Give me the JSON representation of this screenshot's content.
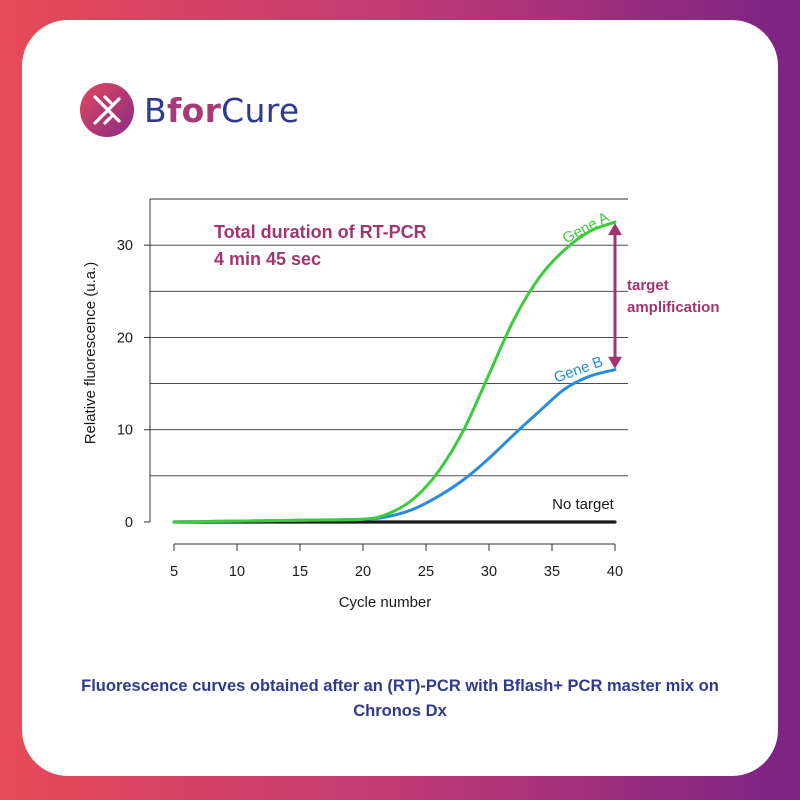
{
  "brand": {
    "part1": "B",
    "part2": "for",
    "part3": "Cure"
  },
  "caption": "Fluorescence curves obtained after an (RT)-PCR with Bflash+ PCR master mix on Chronos Dx",
  "colors": {
    "geneA": "#3ccb3c",
    "geneB": "#2b8be0",
    "noTarget": "#1a1a1a",
    "accent": "#a3356e",
    "caption": "#2f3a8f"
  },
  "chart_data": {
    "type": "line",
    "xlabel": "Cycle number",
    "ylabel": "Relative fluorescence (u.a.)",
    "xlim": [
      5,
      40
    ],
    "ylim": [
      0,
      35
    ],
    "xticks": [
      "5",
      "10",
      "15",
      "20",
      "25",
      "30",
      "35",
      "40"
    ],
    "yticks": [
      "0",
      "10",
      "20",
      "30"
    ],
    "grid": true,
    "x": [
      5,
      10,
      15,
      20,
      22,
      24,
      26,
      28,
      30,
      32,
      34,
      36,
      38,
      40
    ],
    "series": [
      {
        "name": "Gene A",
        "values": [
          0.0,
          0.1,
          0.2,
          0.3,
          0.9,
          2.5,
          5.5,
          10.0,
          16.0,
          22.0,
          26.5,
          29.5,
          31.5,
          32.5
        ]
      },
      {
        "name": "Gene B",
        "values": [
          0.0,
          0.1,
          0.2,
          0.3,
          0.6,
          1.4,
          2.8,
          4.6,
          6.9,
          9.5,
          12.0,
          14.4,
          15.8,
          16.5
        ]
      },
      {
        "name": "No target",
        "values": [
          0.0,
          0.0,
          0.0,
          0.0,
          0.0,
          0.0,
          0.0,
          0.0,
          0.0,
          0.0,
          0.0,
          0.0,
          0.0,
          0.0
        ]
      }
    ],
    "annotations": {
      "duration_line1": "Total duration of RT-PCR",
      "duration_line2": "4 min 45 sec",
      "amplification_line1": "target",
      "amplification_line2": "amplification"
    }
  }
}
